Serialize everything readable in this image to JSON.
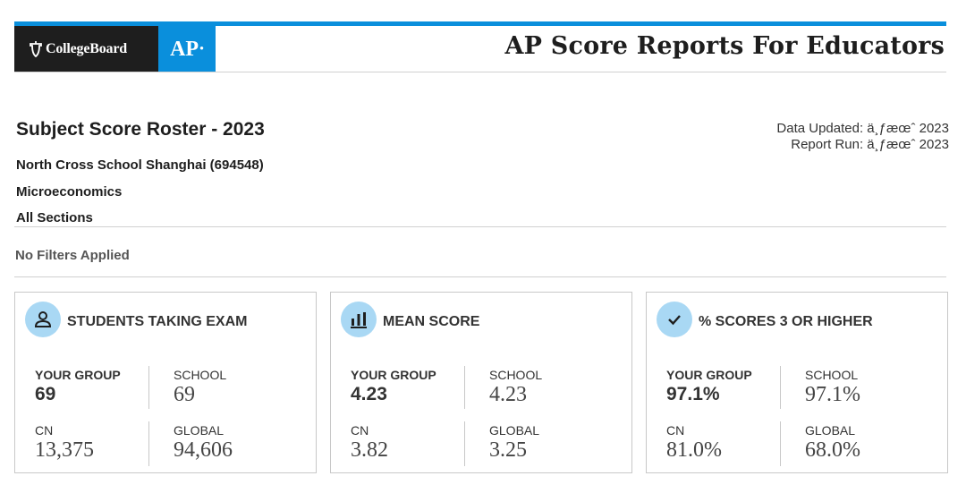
{
  "header": {
    "brand": "CollegeBoard",
    "program": "AP",
    "title": "AP Score Reports For Educators"
  },
  "report": {
    "title": "Subject Score Roster - 2023",
    "data_updated": "Data Updated: ä¸ƒæœˆ 2023",
    "report_run": "Report Run: ä¸ƒæœˆ 2023",
    "school": "North Cross School Shanghai (694548)",
    "subject": "Microeconomics",
    "sections": "All Sections",
    "filters": "No Filters Applied"
  },
  "labels": {
    "your_group": "YOUR GROUP",
    "school": "SCHOOL",
    "cn": "CN",
    "global": "GLOBAL"
  },
  "cards": [
    {
      "title": "STUDENTS TAKING EXAM",
      "icon": "person-icon",
      "your_group": "69",
      "school": "69",
      "cn": "13,375",
      "global": "94,606"
    },
    {
      "title": "MEAN SCORE",
      "icon": "bar-chart-icon",
      "your_group": "4.23",
      "school": "4.23",
      "cn": "3.82",
      "global": "3.25"
    },
    {
      "title": "% SCORES 3 OR HIGHER",
      "icon": "checkmark-icon",
      "your_group": "97.1%",
      "school": "97.1%",
      "cn": "81.0%",
      "global": "68.0%"
    }
  ],
  "colors": {
    "accent": "#0a8fdc",
    "icon_bg": "#a9d8f4",
    "dark": "#1e1e1e"
  }
}
